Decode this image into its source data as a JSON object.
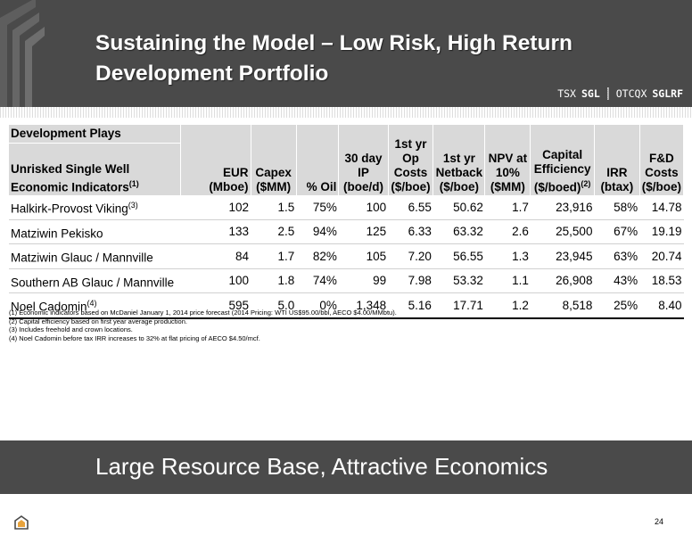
{
  "header": {
    "title_line1": "Sustaining the Model – Low Risk, High Return",
    "title_line2": "Development Portfolio",
    "ticker_exchange_1": "TSX",
    "ticker_symbol_1": "SGL",
    "ticker_exchange_2": "OTCQX",
    "ticker_symbol_2": "SGLRF"
  },
  "table": {
    "group_header": "Development Plays",
    "row_header_line1": "Unrisked Single Well",
    "row_header_line2": "Economic Indicators",
    "row_header_sup": "(1)",
    "columns": {
      "eur": "EUR (Mboe)",
      "capex_1": "Capex",
      "capex_2": "($MM)",
      "oil": "% Oil",
      "ip_1": "30 day",
      "ip_2": "IP",
      "ip_3": "(boe/d)",
      "opcost_1": "1st yr",
      "opcost_2": "Op",
      "opcost_3": "Costs",
      "opcost_4": "($/boe)",
      "netback_1": "1st yr",
      "netback_2": "Netback",
      "netback_3": "($/boe)",
      "npv_1": "NPV at",
      "npv_2": "10%",
      "npv_3": "($MM)",
      "capeff_1": "Capital",
      "capeff_2": "Efficiency",
      "capeff_3": "($/boed)",
      "capeff_sup": "(2)",
      "irr_1": "IRR",
      "irr_2": "(btax)",
      "fd_1": "F&D",
      "fd_2": "Costs",
      "fd_3": "($/boe)"
    },
    "rows": [
      {
        "name": "Halkirk-Provost Viking",
        "sup": "(3)",
        "eur": "102",
        "capex": "1.5",
        "oil": "75%",
        "ip": "100",
        "opcost": "6.55",
        "netback": "50.62",
        "npv": "1.7",
        "capeff": "23,916",
        "irr": "58%",
        "fd": "14.78"
      },
      {
        "name": "Matziwin Pekisko",
        "sup": "",
        "eur": "133",
        "capex": "2.5",
        "oil": "94%",
        "ip": "125",
        "opcost": "6.33",
        "netback": "63.32",
        "npv": "2.6",
        "capeff": "25,500",
        "irr": "67%",
        "fd": "19.19"
      },
      {
        "name": "Matziwin Glauc / Mannville",
        "sup": "",
        "eur": "84",
        "capex": "1.7",
        "oil": "82%",
        "ip": "105",
        "opcost": "7.20",
        "netback": "56.55",
        "npv": "1.3",
        "capeff": "23,945",
        "irr": "63%",
        "fd": "20.74"
      },
      {
        "name": "Southern AB Glauc / Mannville",
        "sup": "",
        "eur": "100",
        "capex": "1.8",
        "oil": "74%",
        "ip": "99",
        "opcost": "7.98",
        "netback": "53.32",
        "npv": "1.1",
        "capeff": "26,908",
        "irr": "43%",
        "fd": "18.53"
      },
      {
        "name": "Noel Cadomin",
        "sup": "(4)",
        "eur": "595",
        "capex": "5.0",
        "oil": "0%",
        "ip": "1,348",
        "opcost": "5.16",
        "netback": "17.71",
        "npv": "1.2",
        "capeff": "8,518",
        "irr": "25%",
        "fd": "8.40"
      }
    ]
  },
  "footnotes": [
    "(1) Economic indicators based on McDaniel January 1, 2014 price forecast (2014 Pricing: WTI US$95.00/bbl, AECO $4.00/MMbtu).",
    "(2) Capital efficiency based on first year average production.",
    "(3) Includes freehold and crown locations.",
    "(4)  Noel Cadomin before tax IRR increases to 32% at flat pricing of AECO $4.50/mcf."
  ],
  "banner": {
    "text": "Large Resource Base, Attractive Economics"
  },
  "footer": {
    "page_number": "24"
  },
  "colors": {
    "header_bg": "#4a4a4a",
    "table_header_bg": "#d9d9d9",
    "accent_orange": "#e8a33c"
  }
}
